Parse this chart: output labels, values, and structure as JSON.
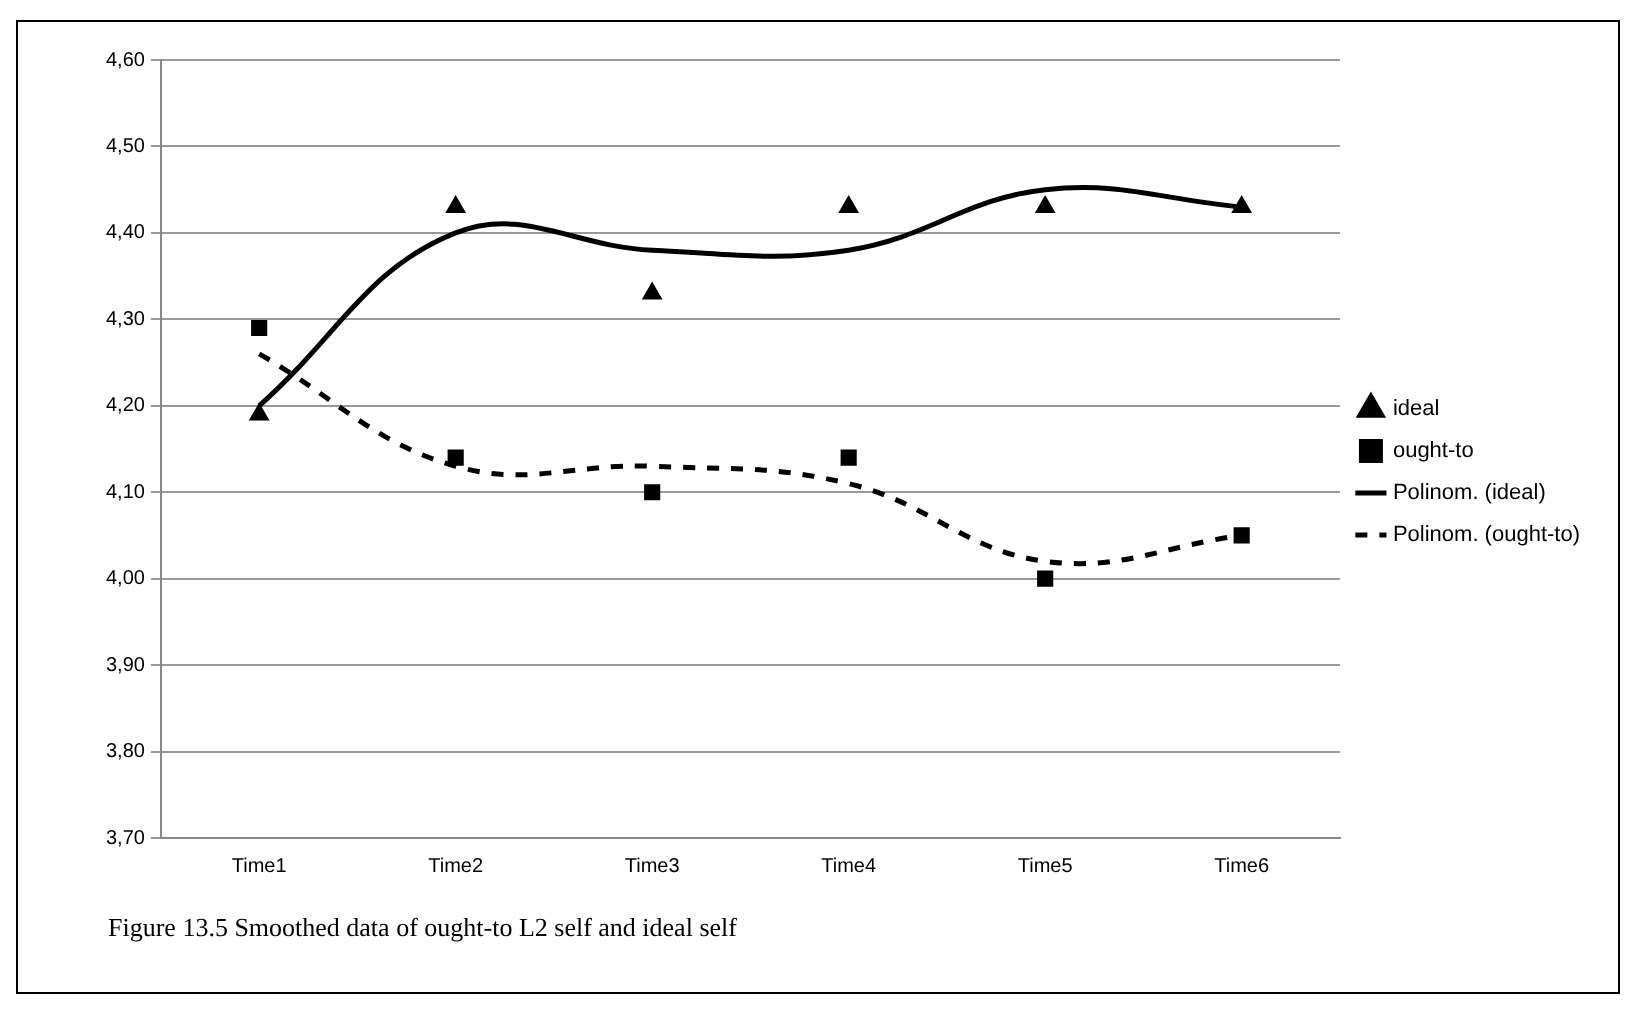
{
  "chart_data": {
    "type": "scatter",
    "categories": [
      "Time1",
      "Time2",
      "Time3",
      "Time4",
      "Time5",
      "Time6"
    ],
    "series": [
      {
        "name": "ideal",
        "marker": "triangle",
        "color": "#000000",
        "values": [
          4.19,
          4.43,
          4.33,
          4.43,
          4.43,
          4.43
        ]
      },
      {
        "name": "ought-to",
        "marker": "square",
        "color": "#000000",
        "values": [
          4.29,
          4.14,
          4.1,
          4.14,
          4.0,
          4.05
        ]
      },
      {
        "name": "Polinom. (ideal)",
        "type": "line",
        "marker": "none",
        "line_style": "solid",
        "color": "#000000",
        "values": [
          4.2,
          4.4,
          4.38,
          4.38,
          4.45,
          4.43
        ]
      },
      {
        "name": "Polinom. (ought-to)",
        "type": "line",
        "marker": "none",
        "line_style": "dashed",
        "color": "#000000",
        "values": [
          4.26,
          4.13,
          4.13,
          4.11,
          4.02,
          4.05
        ]
      }
    ],
    "ylim": [
      3.7,
      4.6
    ],
    "yticks": [
      {
        "value": 3.7,
        "label": "3,70"
      },
      {
        "value": 3.8,
        "label": "3,80"
      },
      {
        "value": 3.9,
        "label": "3,90"
      },
      {
        "value": 4.0,
        "label": "4,00"
      },
      {
        "value": 4.1,
        "label": "4,10"
      },
      {
        "value": 4.2,
        "label": "4,20"
      },
      {
        "value": 4.3,
        "label": "4,30"
      },
      {
        "value": 4.4,
        "label": "4,40"
      },
      {
        "value": 4.5,
        "label": "4,50"
      },
      {
        "value": 4.6,
        "label": "4,60"
      }
    ],
    "grid": "y",
    "legend": "right",
    "annotations": [
      "Figure 13.5 Smoothed data of ought-to L2 self and ideal self"
    ]
  }
}
